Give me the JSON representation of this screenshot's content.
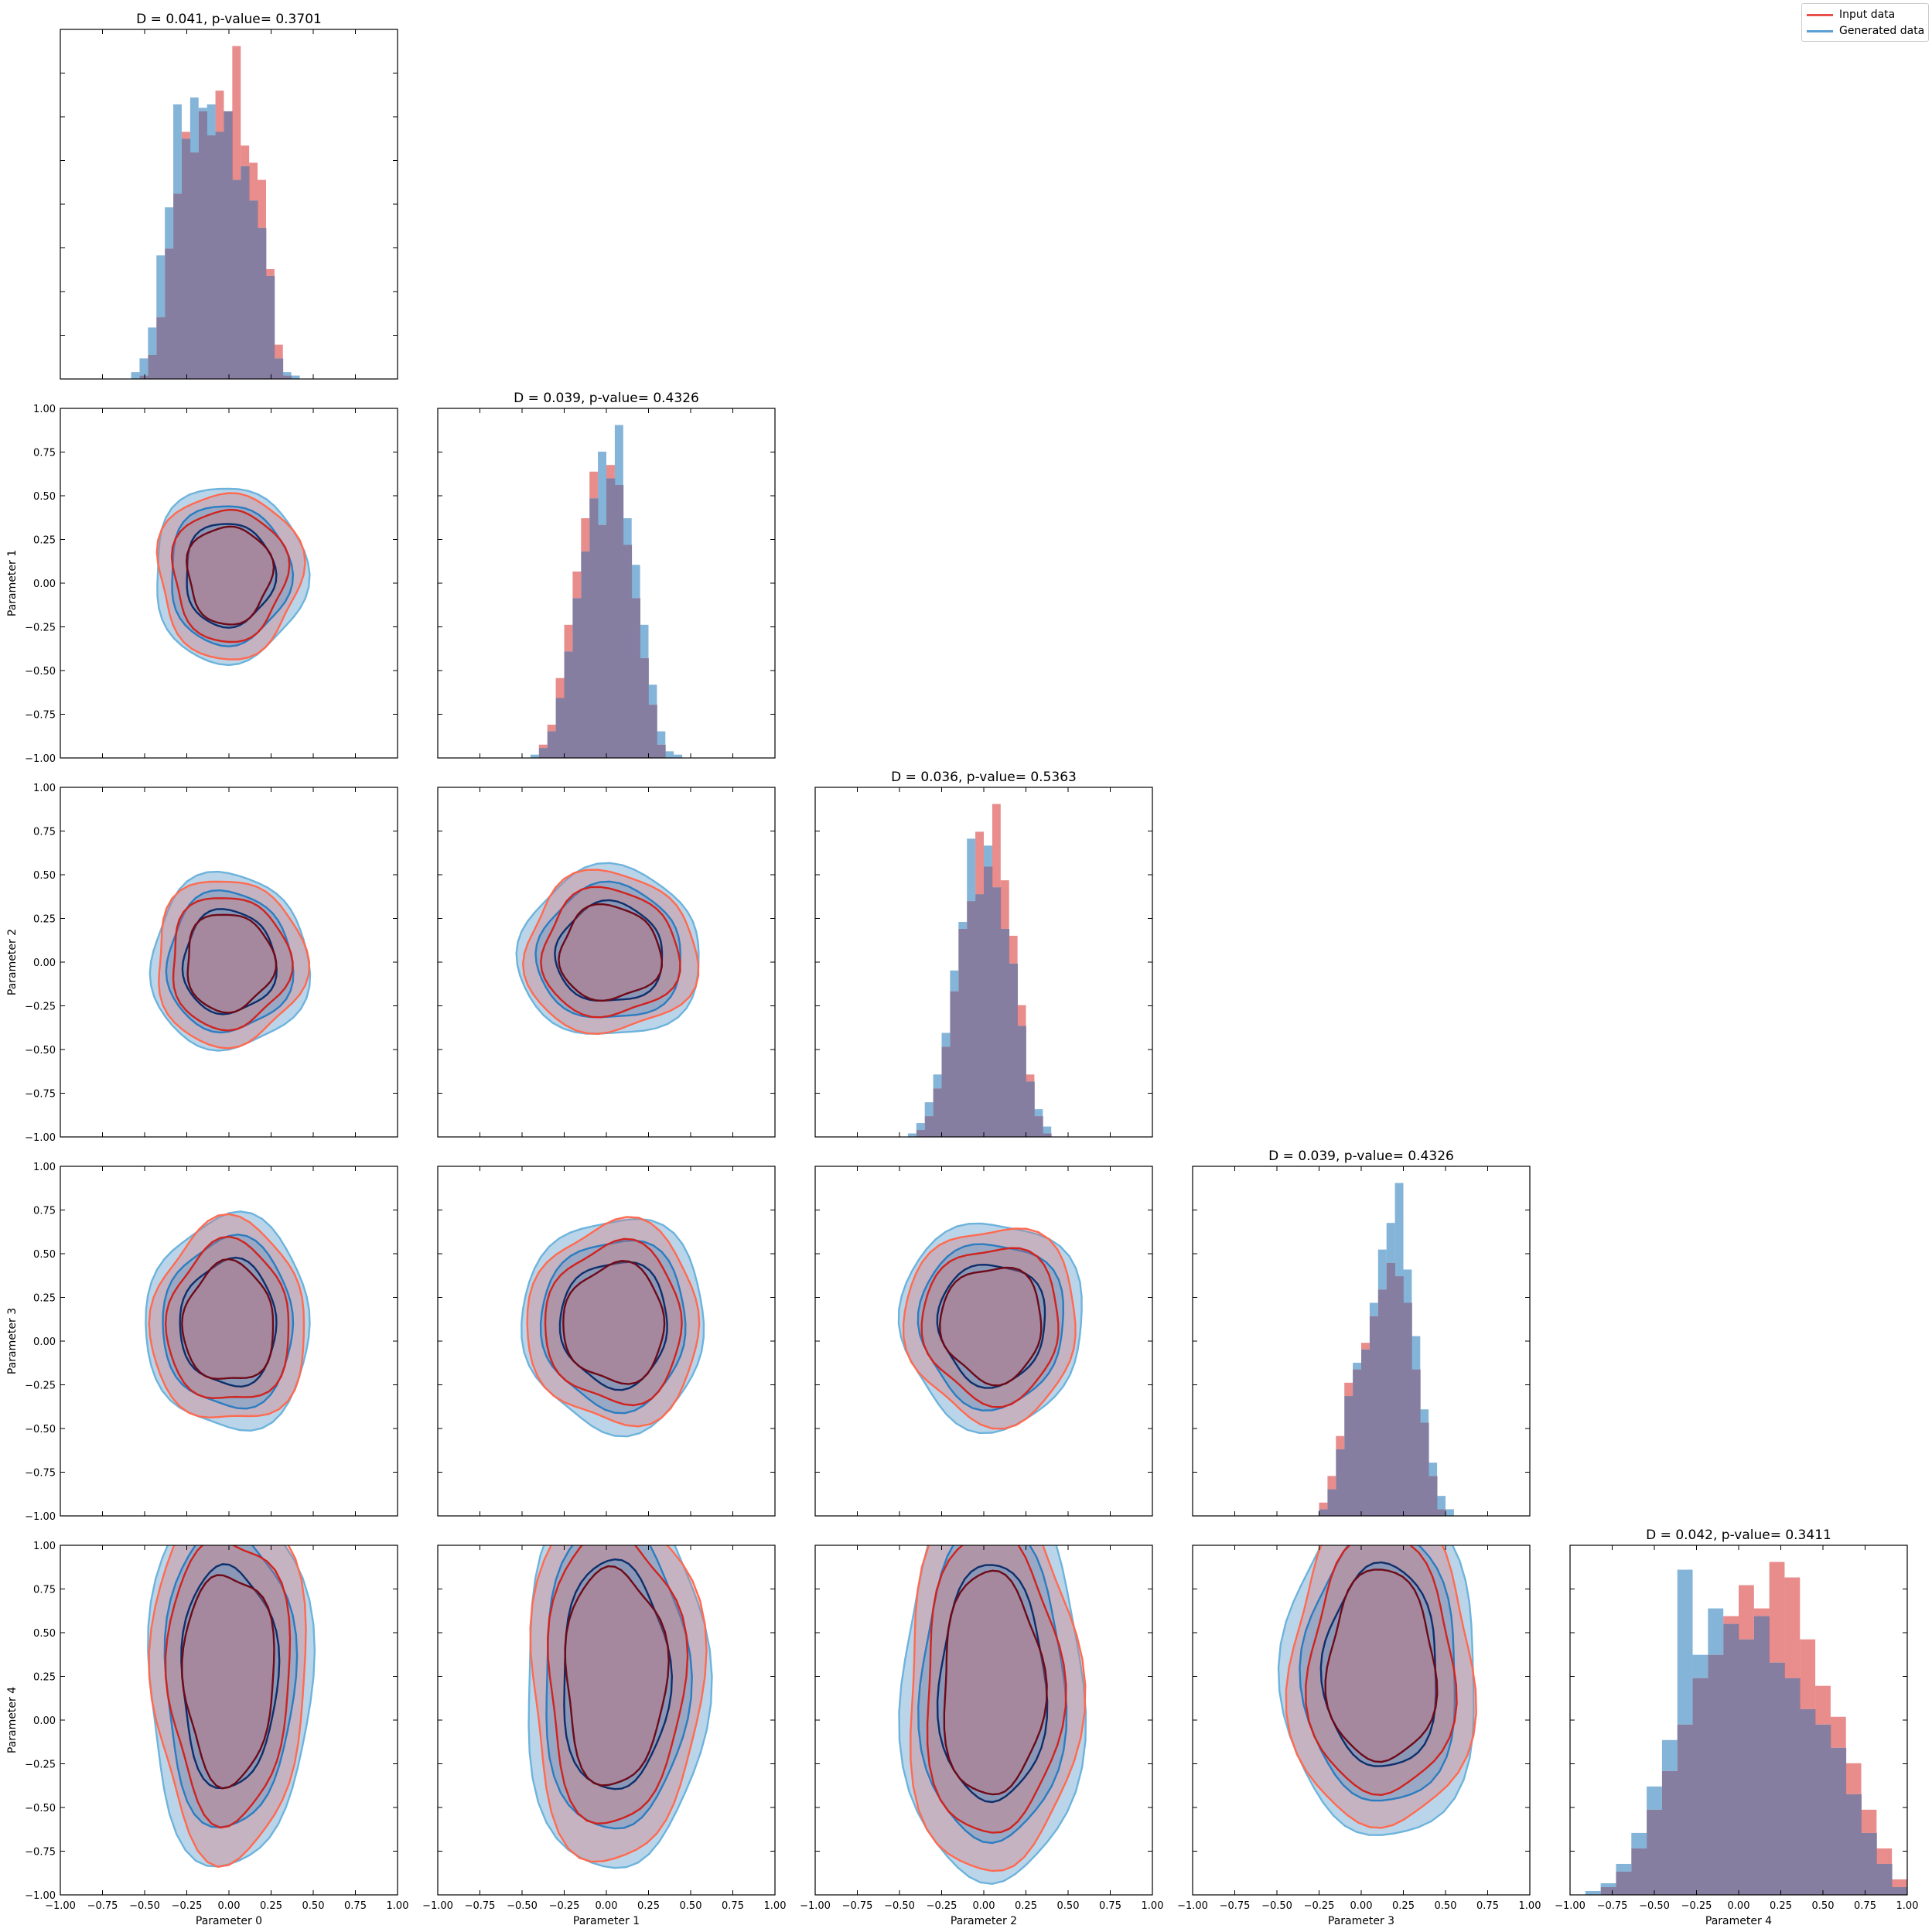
{
  "figure": {
    "legend": [
      {
        "label": "Input data",
        "color": "#e8504a"
      },
      {
        "label": "Generated data",
        "color": "#5a9fd4"
      }
    ],
    "colors": {
      "input_fill": "#e06666",
      "generated_fill": "#5b9bcb",
      "overlap": "#867ea0",
      "input_contours": [
        "#ff6a50",
        "#d0231e",
        "#6e0a18"
      ],
      "generated_contours": [
        "#6db3dc",
        "#2b7cc0",
        "#0d2f6b"
      ]
    }
  },
  "chart_data": {
    "type": "corner",
    "parameters": [
      "Parameter 0",
      "Parameter 1",
      "Parameter 2",
      "Parameter 3",
      "Parameter 4"
    ],
    "axis_range": [
      -1.0,
      1.0
    ],
    "tick_labels": [
      "−1.00",
      "−0.75",
      "−0.50",
      "−0.25",
      "0.00",
      "0.25",
      "0.50",
      "0.75",
      "1.00"
    ],
    "series": [
      {
        "name": "Input data"
      },
      {
        "name": "Generated data"
      }
    ],
    "diagonal_titles": [
      "D = 0.041, p-value= 0.3701",
      "D = 0.039, p-value= 0.4326",
      "D = 0.036, p-value= 0.5363",
      "D = 0.039, p-value= 0.4326",
      "D = 0.042, p-value= 0.3411"
    ],
    "diagonal_stats": [
      {
        "D": 0.041,
        "p_value": 0.3701
      },
      {
        "D": 0.039,
        "p_value": 0.4326
      },
      {
        "D": 0.036,
        "p_value": 0.5363
      },
      {
        "D": 0.039,
        "p_value": 0.4326
      },
      {
        "D": 0.042,
        "p_value": 0.3411
      }
    ],
    "marginals": [
      {
        "param": 0,
        "mean": 0.02,
        "sd": 0.16,
        "bins": 26,
        "input": [
          0,
          0,
          1,
          7,
          18,
          38,
          54,
          72,
          66,
          78,
          71,
          84,
          78,
          97,
          68,
          63,
          58,
          32,
          10,
          1,
          0,
          0,
          0,
          0,
          0,
          0
        ],
        "generated": [
          0,
          2,
          6,
          15,
          36,
          50,
          80,
          70,
          82,
          79,
          80,
          72,
          78,
          58,
          62,
          52,
          44,
          30,
          6,
          2,
          1,
          0,
          0,
          0,
          0,
          0
        ]
      },
      {
        "param": 1,
        "mean": 0.05,
        "sd": 0.18,
        "bins": 26,
        "input": [
          0,
          0,
          0,
          0,
          4,
          10,
          24,
          40,
          56,
          72,
          86,
          70,
          88,
          82,
          64,
          48,
          30,
          16,
          4,
          0,
          0,
          0,
          0,
          0,
          0,
          0
        ],
        "generated": [
          0,
          0,
          0,
          1,
          3,
          8,
          18,
          32,
          48,
          62,
          78,
          92,
          84,
          100,
          72,
          58,
          40,
          22,
          8,
          2,
          1,
          0,
          0,
          0,
          0,
          0
        ]
      },
      {
        "param": 2,
        "mean": 0.05,
        "sd": 0.17,
        "bins": 26,
        "input": [
          0,
          0,
          0,
          0,
          2,
          6,
          14,
          26,
          42,
          60,
          68,
          88,
          78,
          96,
          74,
          58,
          38,
          18,
          6,
          1,
          0,
          0,
          0,
          0,
          0,
          0
        ],
        "generated": [
          0,
          0,
          0,
          1,
          4,
          10,
          18,
          30,
          48,
          62,
          86,
          70,
          84,
          72,
          60,
          50,
          32,
          16,
          8,
          3,
          0,
          0,
          0,
          0,
          0,
          0
        ]
      },
      {
        "param": 3,
        "mean": 0.1,
        "sd": 0.2,
        "bins": 26,
        "input": [
          0,
          0,
          0,
          0,
          0,
          0,
          4,
          12,
          24,
          40,
          44,
          52,
          60,
          68,
          76,
          72,
          64,
          44,
          28,
          12,
          2,
          0,
          0,
          0,
          0,
          0
        ],
        "generated": [
          0,
          0,
          0,
          0,
          0,
          0,
          2,
          8,
          20,
          36,
          46,
          50,
          64,
          80,
          88,
          100,
          74,
          54,
          32,
          16,
          6,
          2,
          0,
          0,
          0,
          0
        ]
      },
      {
        "param": 4,
        "mean": 0.25,
        "sd": 0.35,
        "bins": 22,
        "input": [
          0,
          0,
          2,
          6,
          12,
          22,
          32,
          44,
          56,
          62,
          72,
          80,
          74,
          86,
          82,
          66,
          54,
          46,
          34,
          22,
          12,
          4
        ],
        "generated": [
          0,
          1,
          3,
          8,
          16,
          28,
          40,
          84,
          62,
          74,
          70,
          66,
          72,
          60,
          56,
          48,
          44,
          38,
          26,
          16,
          8,
          2
        ]
      }
    ],
    "pairs": [
      {
        "x": 1,
        "y": 0,
        "xc": 0.0,
        "yc": 0.05,
        "sx": 0.25,
        "sy": 0.28
      },
      {
        "x": 2,
        "y": 0,
        "xc": 0.0,
        "yc": 0.0,
        "sx": 0.26,
        "sy": 0.28
      },
      {
        "x": 2,
        "y": 1,
        "xc": 0.02,
        "yc": 0.05,
        "sx": 0.3,
        "sy": 0.27
      },
      {
        "x": 3,
        "y": 0,
        "xc": 0.0,
        "yc": 0.1,
        "sx": 0.27,
        "sy": 0.34
      },
      {
        "x": 3,
        "y": 1,
        "xc": 0.05,
        "yc": 0.1,
        "sx": 0.3,
        "sy": 0.34
      },
      {
        "x": 3,
        "y": 2,
        "xc": 0.05,
        "yc": 0.1,
        "sx": 0.3,
        "sy": 0.33
      },
      {
        "x": 4,
        "y": 0,
        "xc": 0.0,
        "yc": 0.25,
        "sx": 0.27,
        "sy": 0.6
      },
      {
        "x": 4,
        "y": 1,
        "xc": 0.05,
        "yc": 0.25,
        "sx": 0.3,
        "sy": 0.62
      },
      {
        "x": 4,
        "y": 2,
        "xc": 0.05,
        "yc": 0.2,
        "sx": 0.3,
        "sy": 0.64
      },
      {
        "x": 4,
        "y": 3,
        "xc": 0.12,
        "yc": 0.3,
        "sx": 0.32,
        "sy": 0.55
      }
    ]
  }
}
